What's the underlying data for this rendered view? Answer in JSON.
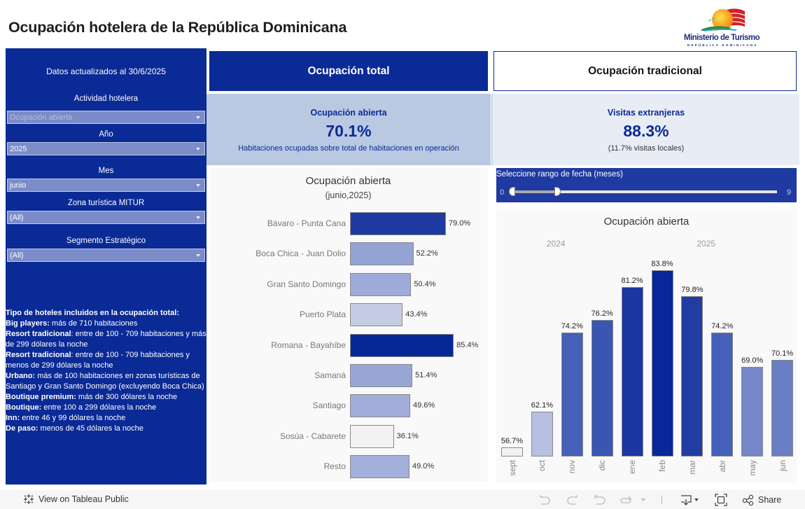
{
  "header": {
    "title": "Ocupación hotelera de la República Dominicana",
    "logo": {
      "name": "Ministerio de Turismo",
      "subtitle": "REPÚBLICA DOMINICANA"
    }
  },
  "sidebar": {
    "updated": "Datos actualizados al  30/6/2025",
    "filters": [
      {
        "label": "Actividad hotelera",
        "value": "Ocupación abierta",
        "disabled": true
      },
      {
        "label": "Año",
        "value": "2025",
        "disabled": false
      },
      {
        "label": "Mes",
        "value": "junio",
        "disabled": false
      },
      {
        "label": "Zona turística MITUR",
        "value": "(All)",
        "disabled": false
      },
      {
        "label": "Segmento Estratégico",
        "value": "(All)",
        "disabled": false
      }
    ],
    "notes": {
      "heading": "Tipo de hoteles incluidos en la ocupación total:",
      "items": [
        {
          "term": "Big players:",
          "desc": " más de 710 habitaciones"
        },
        {
          "term": "Resort tradicional",
          "desc": ": entre de  100 - 709 habitaciones y más de 299 dólares la noche"
        },
        {
          "term": "Resort tradicional",
          "desc": ": entre de 100 - 709 habitaciones y menos de 299 dólares la noche"
        },
        {
          "term": "Urbano:",
          "desc": " más de 100 habitaciones en zonas turísticas de Santiago y Gran Santo Domingo (excluyendo Boca Chica)"
        },
        {
          "term": "Boutique premium:",
          "desc": " más de 300 dólares la noche"
        },
        {
          "term": "Boutique:",
          "desc": " entre 100 a 299 dólares la noche"
        },
        {
          "term": "Inn:",
          "desc": " entre 46 y 99 dólares la noche"
        },
        {
          "term": "De paso:",
          "desc": " menos de 45 dólares la noche"
        }
      ]
    }
  },
  "tabs": [
    {
      "label": "Ocupación total",
      "active": true
    },
    {
      "label": "Ocupación tradicional",
      "active": false
    }
  ],
  "kpis": [
    {
      "title": "Ocupación abierta",
      "value": "70.1%",
      "desc": "Habitaciones ocupadas sobre total de habitaciones en operación"
    },
    {
      "title": "Visitas extranjeras",
      "value": "88.3%",
      "desc": "(11.7% visitas locales)"
    }
  ],
  "slider": {
    "label": "Seleccione rango de fecha (meses)",
    "min": 0,
    "max": 9,
    "min_label": "0",
    "max_label": "9",
    "selected_range": [
      0,
      1.7
    ]
  },
  "colors": {
    "primary_blue": "#0a2a96",
    "slider_blue": "#1f3aa0",
    "kpi_left_bg": "#b9c9e2",
    "kpi_right_bg": "#e8edf5",
    "panel_bg": "#f9f9f9"
  },
  "chart_data": [
    {
      "type": "bar",
      "orientation": "horizontal",
      "title": "Ocupación abierta",
      "subtitle": "(junio,2025)",
      "categories": [
        "Bávaro - Punta Cana",
        "Boca Chica - Juan Dolio",
        "Gran Santo Domingo",
        "Puerto Plata",
        "Romana - Bayahíbe",
        "Samaná",
        "Santiago",
        "Sosúa - Cabarete",
        "Resto"
      ],
      "values": [
        79.0,
        52.2,
        50.4,
        43.4,
        85.4,
        51.4,
        49.6,
        36.1,
        49.0
      ],
      "value_labels": [
        "79.0%",
        "52.2%",
        "50.4%",
        "43.4%",
        "85.4%",
        "51.4%",
        "49.6%",
        "36.1%",
        "49.0%"
      ],
      "colors": [
        "#1f3aa0",
        "#94a3d4",
        "#9eabd8",
        "#c5cce6",
        "#062796",
        "#98a6d6",
        "#a2aed9",
        "#f2f2f2",
        "#a4b0da"
      ],
      "xlim": [
        0,
        100
      ],
      "xlabel": "",
      "ylabel": "",
      "grid": false
    },
    {
      "type": "bar",
      "orientation": "vertical",
      "title": "Ocupación abierta",
      "groups": [
        {
          "label": "2024",
          "categories": [
            "sept",
            "oct",
            "nov",
            "dic"
          ]
        },
        {
          "label": "2025",
          "categories": [
            "ene",
            "feb",
            "mar",
            "abr",
            "may",
            "jun"
          ]
        }
      ],
      "categories": [
        "sept",
        "oct",
        "nov",
        "dic",
        "ene",
        "feb",
        "mar",
        "abr",
        "may",
        "jun"
      ],
      "values": [
        56.7,
        62.1,
        74.2,
        76.2,
        81.2,
        83.8,
        79.8,
        74.2,
        69.0,
        70.1
      ],
      "value_labels": [
        "56.7%",
        "62.1%",
        "74.2%",
        "76.2%",
        "81.2%",
        "83.8%",
        "79.8%",
        "74.2%",
        "69.0%",
        "70.1%"
      ],
      "colors": [
        "#f2f2f2",
        "#b7c0e0",
        "#4560b8",
        "#3a55b2",
        "#1b36a0",
        "#08279a",
        "#233ca3",
        "#4560b8",
        "#7587c8",
        "#6a7ec4"
      ],
      "ylim": [
        55.3,
        86.0
      ],
      "xlabel": "",
      "ylabel": "",
      "grid": false
    }
  ],
  "footer": {
    "view_link": "View on Tableau Public",
    "share_label": "Share"
  }
}
